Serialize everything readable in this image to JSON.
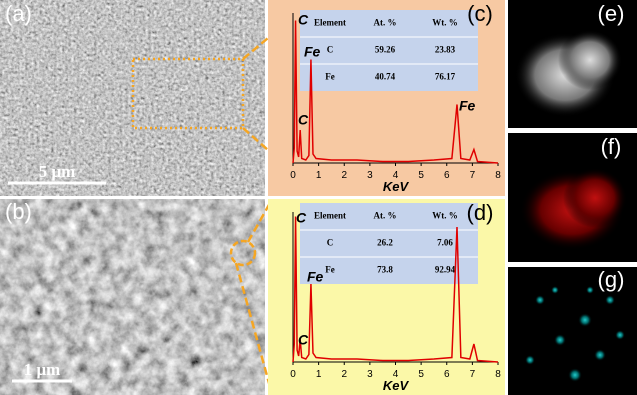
{
  "panels": {
    "a": {
      "label": "(a)",
      "scale_bar": "5 μm"
    },
    "b": {
      "label": "(b)",
      "scale_bar": "1 μm"
    },
    "e": {
      "label": "(e)"
    },
    "f": {
      "label": "(f)"
    },
    "g": {
      "label": "(g)"
    }
  },
  "chart_data": [
    {
      "type": "line",
      "label": "(c)",
      "x_label": "KeV",
      "color": "#e00000",
      "xlim": [
        0,
        8
      ],
      "xticks": [
        0,
        1,
        2,
        3,
        4,
        5,
        6,
        7,
        8
      ],
      "ylim": [
        0,
        100
      ],
      "x": [
        0,
        0.05,
        0.1,
        0.16,
        0.22,
        0.28,
        0.34,
        0.5,
        0.62,
        0.7,
        0.78,
        0.9,
        1.5,
        2.5,
        3.5,
        4.5,
        5.5,
        6.2,
        6.4,
        6.55,
        6.9,
        7.06,
        7.2,
        8
      ],
      "values": [
        0,
        10,
        95,
        8,
        4,
        22,
        3,
        2,
        5,
        69,
        6,
        3,
        2,
        2,
        1,
        1,
        2,
        3,
        39,
        3,
        2,
        9,
        1,
        0
      ],
      "annotations": [
        "C",
        "Fe",
        "C",
        "Fe"
      ],
      "table": {
        "header": [
          "Element",
          "At. %",
          "Wt. %"
        ],
        "rows": [
          [
            "C",
            59.26,
            23.83
          ],
          [
            "Fe",
            40.74,
            76.17
          ]
        ]
      }
    },
    {
      "type": "line",
      "label": "(d)",
      "x_label": "KeV",
      "color": "#e00000",
      "xlim": [
        0,
        8
      ],
      "xticks": [
        0,
        1,
        2,
        3,
        4,
        5,
        6,
        7,
        8
      ],
      "ylim": [
        0,
        100
      ],
      "x": [
        0,
        0.05,
        0.1,
        0.16,
        0.22,
        0.28,
        0.34,
        0.5,
        0.62,
        0.7,
        0.78,
        0.9,
        1.5,
        2.5,
        3.5,
        4.5,
        5.5,
        6.2,
        6.4,
        6.55,
        6.9,
        7.06,
        7.2,
        8
      ],
      "values": [
        0,
        12,
        97,
        8,
        4,
        15,
        3,
        2,
        5,
        52,
        6,
        3,
        2,
        2,
        1,
        1,
        2,
        3,
        90,
        3,
        2,
        12,
        1,
        0
      ],
      "annotations": [
        "C",
        "Fe",
        "C"
      ],
      "table": {
        "header": [
          "Element",
          "At. %",
          "Wt. %"
        ],
        "rows": [
          [
            "C",
            26.2,
            7.06
          ],
          [
            "Fe",
            73.8,
            92.94
          ]
        ]
      }
    }
  ]
}
